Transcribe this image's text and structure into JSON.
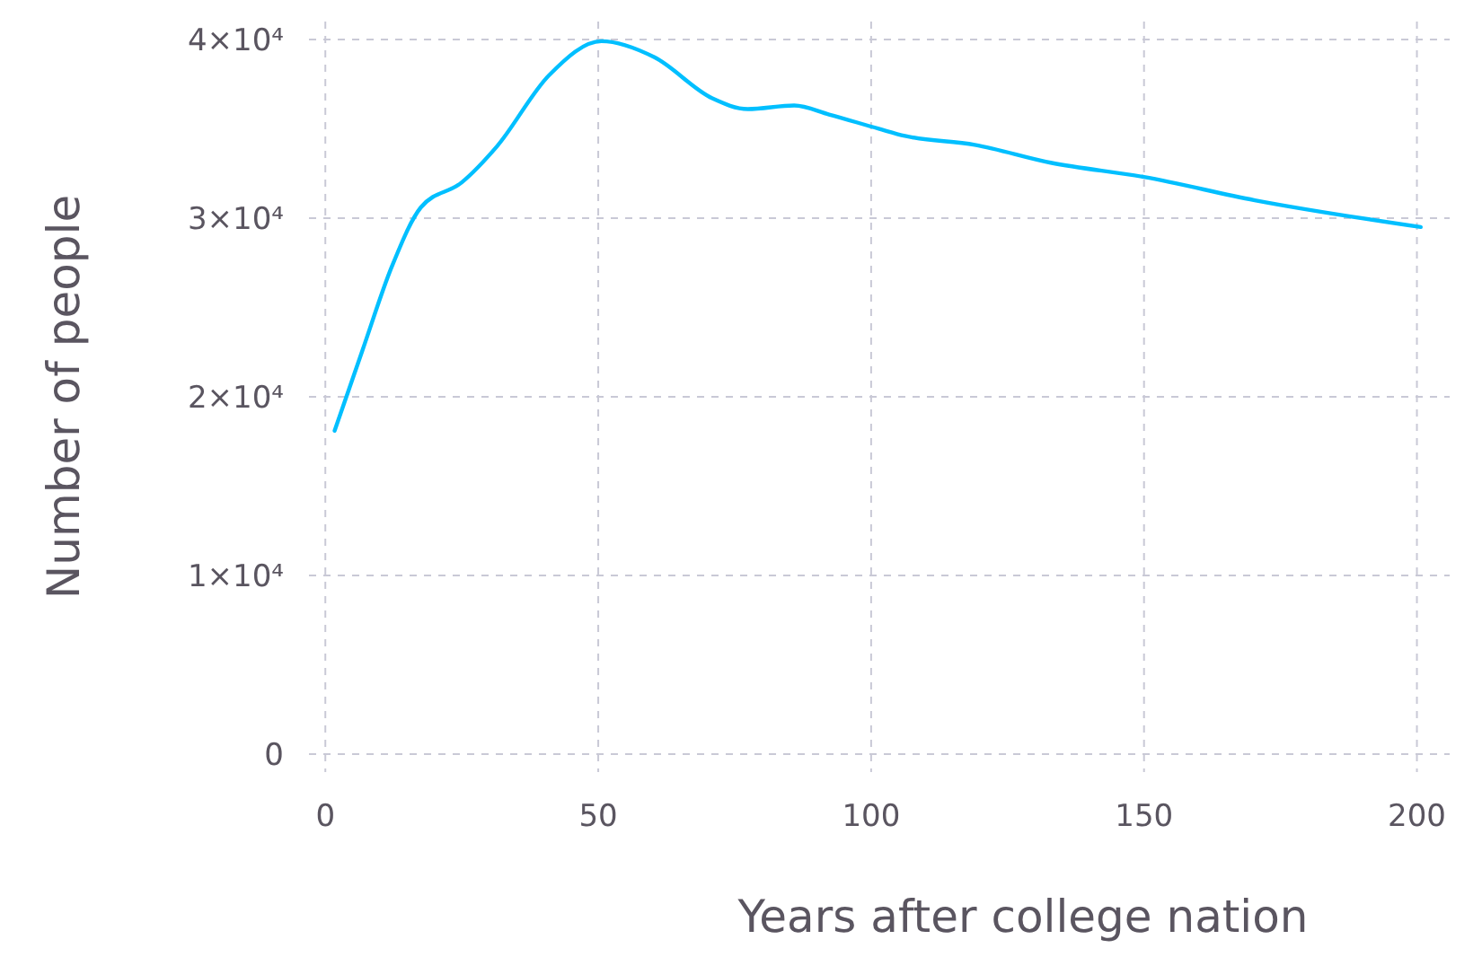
{
  "chart_data": {
    "type": "line",
    "xlabel": "Years after college nation",
    "ylabel": "Number of people",
    "xlim": [
      -3,
      206
    ],
    "ylim": [
      -1000,
      41000
    ],
    "xticks": [
      0,
      50,
      100,
      150,
      200
    ],
    "yticks": [
      0,
      {
        "value": 10000,
        "label": "1×10⁴"
      },
      {
        "value": 20000,
        "label": "2×10⁴"
      },
      {
        "value": 30000,
        "label": "3×10⁴"
      },
      {
        "value": 40000,
        "label": "4×10⁴"
      }
    ],
    "grid": true,
    "line_style": "solid",
    "marker": "none",
    "series": [
      {
        "color": "#00bfff",
        "x": [
          1.7,
          6.8,
          12.2,
          17.5,
          25,
          31.4,
          41,
          50.6,
          60.3,
          70.9,
          77.4,
          85.9,
          92.3,
          101.4,
          106.2,
          119,
          132.9,
          150,
          170.3,
          200.7
        ],
        "values": [
          18100,
          22600,
          27300,
          30600,
          32000,
          34000,
          38000,
          39900,
          39000,
          36700,
          36100,
          36300,
          35800,
          35000,
          34600,
          34100,
          33100,
          32300,
          31000,
          29500
        ]
      }
    ]
  }
}
